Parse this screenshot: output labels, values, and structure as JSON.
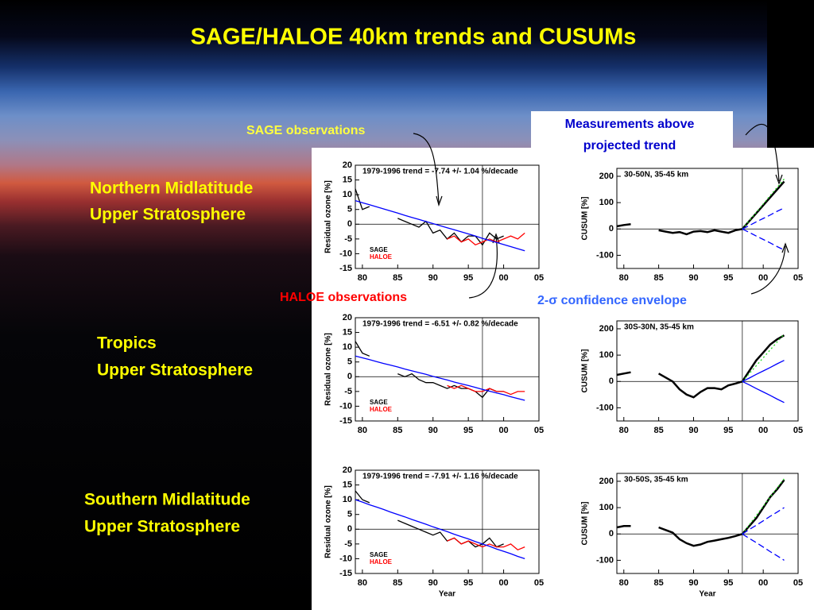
{
  "slide": {
    "title": "SAGE/HALOE 40km trends and CUSUMs",
    "regions": [
      [
        "Northern Midlatitude",
        "Upper Stratosphere"
      ],
      [
        "Tropics",
        "Upper Stratosphere"
      ],
      [
        "Southern Midlatitude",
        "Upper Stratosphere"
      ]
    ],
    "callouts": {
      "sage": "SAGE observations",
      "haloe": "HALOE observations",
      "above": [
        "Measurements above",
        "projected trend"
      ],
      "envelope": "2-σ confidence envelope"
    }
  },
  "chart_data": [
    {
      "type": "line",
      "annotation": "1979-1996 trend =  -7.74 +/-  1.04 %/decade",
      "ylabel": "Residual ozone [%]",
      "x": [
        1979,
        1980,
        1981,
        1982,
        1983,
        1984,
        1985,
        1986,
        1987,
        1988,
        1989,
        1990,
        1991,
        1992,
        1993,
        1994,
        1995,
        1996,
        1997,
        1998,
        1999,
        2000,
        2001,
        2002,
        2003
      ],
      "xlim": [
        1979,
        2005
      ],
      "xticks": [
        {
          "value": 1980,
          "label": "80"
        },
        {
          "value": 1985,
          "label": "85"
        },
        {
          "value": 1990,
          "label": "90"
        },
        {
          "value": 1995,
          "label": "95"
        },
        {
          "value": 2000,
          "label": "00"
        },
        {
          "value": 2005,
          "label": "05"
        }
      ],
      "ylim": [
        -15,
        20
      ],
      "yticks": [
        -15,
        -10,
        -5,
        0,
        5,
        10,
        15,
        20
      ],
      "vline": 1997,
      "hline": 0,
      "series": [
        {
          "name": "SAGE",
          "color": "#000000",
          "legend": true,
          "values": [
            12,
            5,
            6,
            null,
            null,
            null,
            2,
            1,
            0,
            -1,
            1,
            -3,
            -2,
            -5,
            -3,
            -6,
            -4,
            -4,
            -7,
            -3,
            -5,
            -4,
            null,
            null,
            null
          ]
        },
        {
          "name": "HALOE",
          "color": "#ff0000",
          "legend": true,
          "values": [
            null,
            null,
            null,
            null,
            null,
            null,
            null,
            null,
            null,
            null,
            null,
            null,
            null,
            -5,
            -4,
            -6,
            -5,
            -7,
            -6,
            -5,
            -6,
            -5,
            -4,
            -5,
            -3
          ]
        },
        {
          "color": "#0000ff",
          "values": [
            8.0,
            7.3,
            6.6,
            5.9,
            5.2,
            4.5,
            3.8,
            3.0,
            2.3,
            1.6,
            0.9,
            0.2,
            -0.5,
            -1.2,
            -1.9,
            -2.6,
            -3.3,
            -4.0,
            -4.8,
            -5.5,
            -6.2,
            -6.9,
            -7.6,
            -8.3,
            -9.0
          ]
        }
      ]
    },
    {
      "type": "line",
      "annotation": "30-50N, 35-45 km",
      "ylabel": "CUSUM [%]",
      "x": [
        1979,
        1980,
        1981,
        1982,
        1983,
        1984,
        1985,
        1986,
        1987,
        1988,
        1989,
        1990,
        1991,
        1992,
        1993,
        1994,
        1995,
        1996,
        1997,
        1998,
        1999,
        2000,
        2001,
        2002,
        2003
      ],
      "xlim": [
        1979,
        2005
      ],
      "xticks": [
        {
          "value": 1980,
          "label": "80"
        },
        {
          "value": 1985,
          "label": "85"
        },
        {
          "value": 1990,
          "label": "90"
        },
        {
          "value": 1995,
          "label": "95"
        },
        {
          "value": 2000,
          "label": "00"
        },
        {
          "value": 2005,
          "label": "05"
        }
      ],
      "ylim": [
        -150,
        230
      ],
      "yticks": [
        -100,
        0,
        100,
        200
      ],
      "vline": 1997,
      "hline": 0,
      "series": [
        {
          "color": "#000000",
          "width": 2.5,
          "values": [
            10,
            15,
            18,
            null,
            null,
            null,
            -5,
            -10,
            -15,
            -12,
            -20,
            -10,
            -8,
            -12,
            -5,
            -10,
            -15,
            -5,
            0,
            30,
            60,
            90,
            120,
            150,
            180
          ]
        },
        {
          "color": "#22dd22",
          "dash": "2,3",
          "values": [
            null,
            null,
            null,
            null,
            null,
            null,
            null,
            null,
            null,
            null,
            null,
            null,
            null,
            null,
            null,
            null,
            null,
            null,
            0,
            32,
            63,
            95,
            127,
            158,
            190
          ]
        },
        {
          "color": "#0000ff",
          "dash": "8,4",
          "values": [
            null,
            null,
            null,
            null,
            null,
            null,
            null,
            null,
            null,
            null,
            null,
            null,
            null,
            null,
            null,
            null,
            null,
            null,
            0,
            13,
            27,
            40,
            53,
            67,
            80
          ]
        },
        {
          "color": "#0000ff",
          "dash": "8,4",
          "values": [
            null,
            null,
            null,
            null,
            null,
            null,
            null,
            null,
            null,
            null,
            null,
            null,
            null,
            null,
            null,
            null,
            null,
            null,
            0,
            -13,
            -27,
            -40,
            -53,
            -67,
            -80
          ]
        }
      ]
    },
    {
      "type": "line",
      "annotation": "1979-1996 trend =  -6.51 +/-  0.82 %/decade",
      "ylabel": "Residual ozone [%]",
      "x": [
        1979,
        1980,
        1981,
        1982,
        1983,
        1984,
        1985,
        1986,
        1987,
        1988,
        1989,
        1990,
        1991,
        1992,
        1993,
        1994,
        1995,
        1996,
        1997,
        1998,
        1999,
        2000,
        2001,
        2002,
        2003
      ],
      "xlim": [
        1979,
        2005
      ],
      "xticks": [
        {
          "value": 1980,
          "label": "80"
        },
        {
          "value": 1985,
          "label": "85"
        },
        {
          "value": 1990,
          "label": "90"
        },
        {
          "value": 1995,
          "label": "95"
        },
        {
          "value": 2000,
          "label": "00"
        },
        {
          "value": 2005,
          "label": "05"
        }
      ],
      "ylim": [
        -15,
        20
      ],
      "yticks": [
        -15,
        -10,
        -5,
        0,
        5,
        10,
        15,
        20
      ],
      "vline": 1997,
      "hline": 0,
      "series": [
        {
          "name": "SAGE",
          "color": "#000000",
          "legend": true,
          "values": [
            12,
            8,
            7,
            null,
            null,
            null,
            1,
            0,
            1,
            -1,
            -2,
            -2,
            -3,
            -4,
            -3,
            -4,
            -4,
            -5,
            -7,
            -4,
            -5,
            -5,
            null,
            null,
            null
          ]
        },
        {
          "name": "HALOE",
          "color": "#ff0000",
          "legend": true,
          "values": [
            null,
            null,
            null,
            null,
            null,
            null,
            null,
            null,
            null,
            null,
            null,
            null,
            null,
            -3,
            -4,
            -3,
            -4,
            -5,
            -5,
            -4,
            -5,
            -5,
            -6,
            -5,
            -5
          ]
        },
        {
          "color": "#0000ff",
          "values": [
            7.0,
            6.4,
            5.8,
            5.1,
            4.5,
            3.9,
            3.3,
            2.6,
            2.0,
            1.4,
            0.8,
            0.1,
            -0.5,
            -1.1,
            -1.8,
            -2.4,
            -3.0,
            -3.6,
            -4.3,
            -4.9,
            -5.5,
            -6.1,
            -6.8,
            -7.4,
            -8.0
          ]
        }
      ]
    },
    {
      "type": "line",
      "annotation": "30S-30N, 35-45 km",
      "ylabel": "CUSUM [%]",
      "x": [
        1979,
        1980,
        1981,
        1982,
        1983,
        1984,
        1985,
        1986,
        1987,
        1988,
        1989,
        1990,
        1991,
        1992,
        1993,
        1994,
        1995,
        1996,
        1997,
        1998,
        1999,
        2000,
        2001,
        2002,
        2003
      ],
      "xlim": [
        1979,
        2005
      ],
      "xticks": [
        {
          "value": 1980,
          "label": "80"
        },
        {
          "value": 1985,
          "label": "85"
        },
        {
          "value": 1990,
          "label": "90"
        },
        {
          "value": 1995,
          "label": "95"
        },
        {
          "value": 2000,
          "label": "00"
        },
        {
          "value": 2005,
          "label": "05"
        }
      ],
      "ylim": [
        -150,
        230
      ],
      "yticks": [
        -100,
        0,
        100,
        200
      ],
      "vline": 1997,
      "hline": 0,
      "series": [
        {
          "color": "#000000",
          "width": 2.5,
          "values": [
            25,
            30,
            35,
            null,
            null,
            null,
            30,
            15,
            0,
            -30,
            -50,
            -60,
            -40,
            -25,
            -25,
            -30,
            -15,
            -8,
            0,
            40,
            80,
            110,
            140,
            160,
            175
          ]
        },
        {
          "color": "#22dd22",
          "dash": "2,3",
          "values": [
            null,
            null,
            null,
            null,
            null,
            null,
            null,
            null,
            null,
            null,
            null,
            null,
            null,
            null,
            null,
            null,
            null,
            null,
            0,
            30,
            60,
            90,
            120,
            150,
            180
          ]
        },
        {
          "color": "#0000ff",
          "values": [
            null,
            null,
            null,
            null,
            null,
            null,
            null,
            null,
            null,
            null,
            null,
            null,
            null,
            null,
            null,
            null,
            null,
            null,
            0,
            13,
            27,
            40,
            53,
            67,
            80
          ]
        },
        {
          "color": "#0000ff",
          "values": [
            null,
            null,
            null,
            null,
            null,
            null,
            null,
            null,
            null,
            null,
            null,
            null,
            null,
            null,
            null,
            null,
            null,
            null,
            0,
            -13,
            -27,
            -40,
            -53,
            -67,
            -80
          ]
        }
      ]
    },
    {
      "type": "line",
      "annotation": "1979-1996 trend =  -7.91 +/-  1.16 %/decade",
      "ylabel": "Residual ozone [%]",
      "xlabel": "Year",
      "x": [
        1979,
        1980,
        1981,
        1982,
        1983,
        1984,
        1985,
        1986,
        1987,
        1988,
        1989,
        1990,
        1991,
        1992,
        1993,
        1994,
        1995,
        1996,
        1997,
        1998,
        1999,
        2000,
        2001,
        2002,
        2003
      ],
      "xlim": [
        1979,
        2005
      ],
      "xticks": [
        {
          "value": 1980,
          "label": "80"
        },
        {
          "value": 1985,
          "label": "85"
        },
        {
          "value": 1990,
          "label": "90"
        },
        {
          "value": 1995,
          "label": "95"
        },
        {
          "value": 2000,
          "label": "00"
        },
        {
          "value": 2005,
          "label": "05"
        }
      ],
      "ylim": [
        -15,
        20
      ],
      "yticks": [
        -15,
        -10,
        -5,
        0,
        5,
        10,
        15,
        20
      ],
      "vline": 1997,
      "hline": 0,
      "series": [
        {
          "name": "SAGE",
          "color": "#000000",
          "legend": true,
          "values": [
            13,
            10,
            9,
            null,
            null,
            null,
            3,
            2,
            1,
            0,
            -1,
            -2,
            -1,
            -4,
            -3,
            -5,
            -4,
            -6,
            -5,
            -3,
            -6,
            -5,
            null,
            null,
            null
          ]
        },
        {
          "name": "HALOE",
          "color": "#ff0000",
          "legend": true,
          "values": [
            null,
            null,
            null,
            null,
            null,
            null,
            null,
            null,
            null,
            null,
            null,
            null,
            null,
            -4,
            -3,
            -5,
            -4,
            -5,
            -6,
            -5,
            -6,
            -6,
            -5,
            -7,
            -6
          ]
        },
        {
          "color": "#0000ff",
          "values": [
            10.0,
            9.2,
            8.3,
            7.5,
            6.7,
            5.8,
            5.0,
            4.2,
            3.3,
            2.5,
            1.7,
            0.8,
            0.0,
            -0.8,
            -1.7,
            -2.5,
            -3.3,
            -4.2,
            -5.0,
            -5.8,
            -6.7,
            -7.5,
            -8.3,
            -9.2,
            -10.0
          ]
        }
      ]
    },
    {
      "type": "line",
      "annotation": "30-50S, 35-45 km",
      "ylabel": "CUSUM [%]",
      "xlabel": "Year",
      "x": [
        1979,
        1980,
        1981,
        1982,
        1983,
        1984,
        1985,
        1986,
        1987,
        1988,
        1989,
        1990,
        1991,
        1992,
        1993,
        1994,
        1995,
        1996,
        1997,
        1998,
        1999,
        2000,
        2001,
        2002,
        2003
      ],
      "xlim": [
        1979,
        2005
      ],
      "xticks": [
        {
          "value": 1980,
          "label": "80"
        },
        {
          "value": 1985,
          "label": "85"
        },
        {
          "value": 1990,
          "label": "90"
        },
        {
          "value": 1995,
          "label": "95"
        },
        {
          "value": 2000,
          "label": "00"
        },
        {
          "value": 2005,
          "label": "05"
        }
      ],
      "ylim": [
        -150,
        230
      ],
      "yticks": [
        -100,
        0,
        100,
        200
      ],
      "vline": 1997,
      "hline": 0,
      "series": [
        {
          "color": "#000000",
          "width": 2.5,
          "values": [
            25,
            30,
            30,
            null,
            null,
            null,
            25,
            15,
            5,
            -20,
            -35,
            -45,
            -40,
            -30,
            -25,
            -20,
            -15,
            -8,
            0,
            30,
            60,
            100,
            140,
            170,
            205
          ]
        },
        {
          "color": "#22dd22",
          "dash": "2,3",
          "values": [
            null,
            null,
            null,
            null,
            null,
            null,
            null,
            null,
            null,
            null,
            null,
            null,
            null,
            null,
            null,
            null,
            null,
            null,
            0,
            35,
            70,
            105,
            140,
            175,
            210
          ]
        },
        {
          "color": "#0000ff",
          "dash": "8,4",
          "values": [
            null,
            null,
            null,
            null,
            null,
            null,
            null,
            null,
            null,
            null,
            null,
            null,
            null,
            null,
            null,
            null,
            null,
            null,
            0,
            17,
            33,
            50,
            67,
            83,
            100
          ]
        },
        {
          "color": "#0000ff",
          "dash": "8,4",
          "values": [
            null,
            null,
            null,
            null,
            null,
            null,
            null,
            null,
            null,
            null,
            null,
            null,
            null,
            null,
            null,
            null,
            null,
            null,
            0,
            -17,
            -33,
            -50,
            -67,
            -83,
            -100
          ]
        }
      ]
    }
  ]
}
